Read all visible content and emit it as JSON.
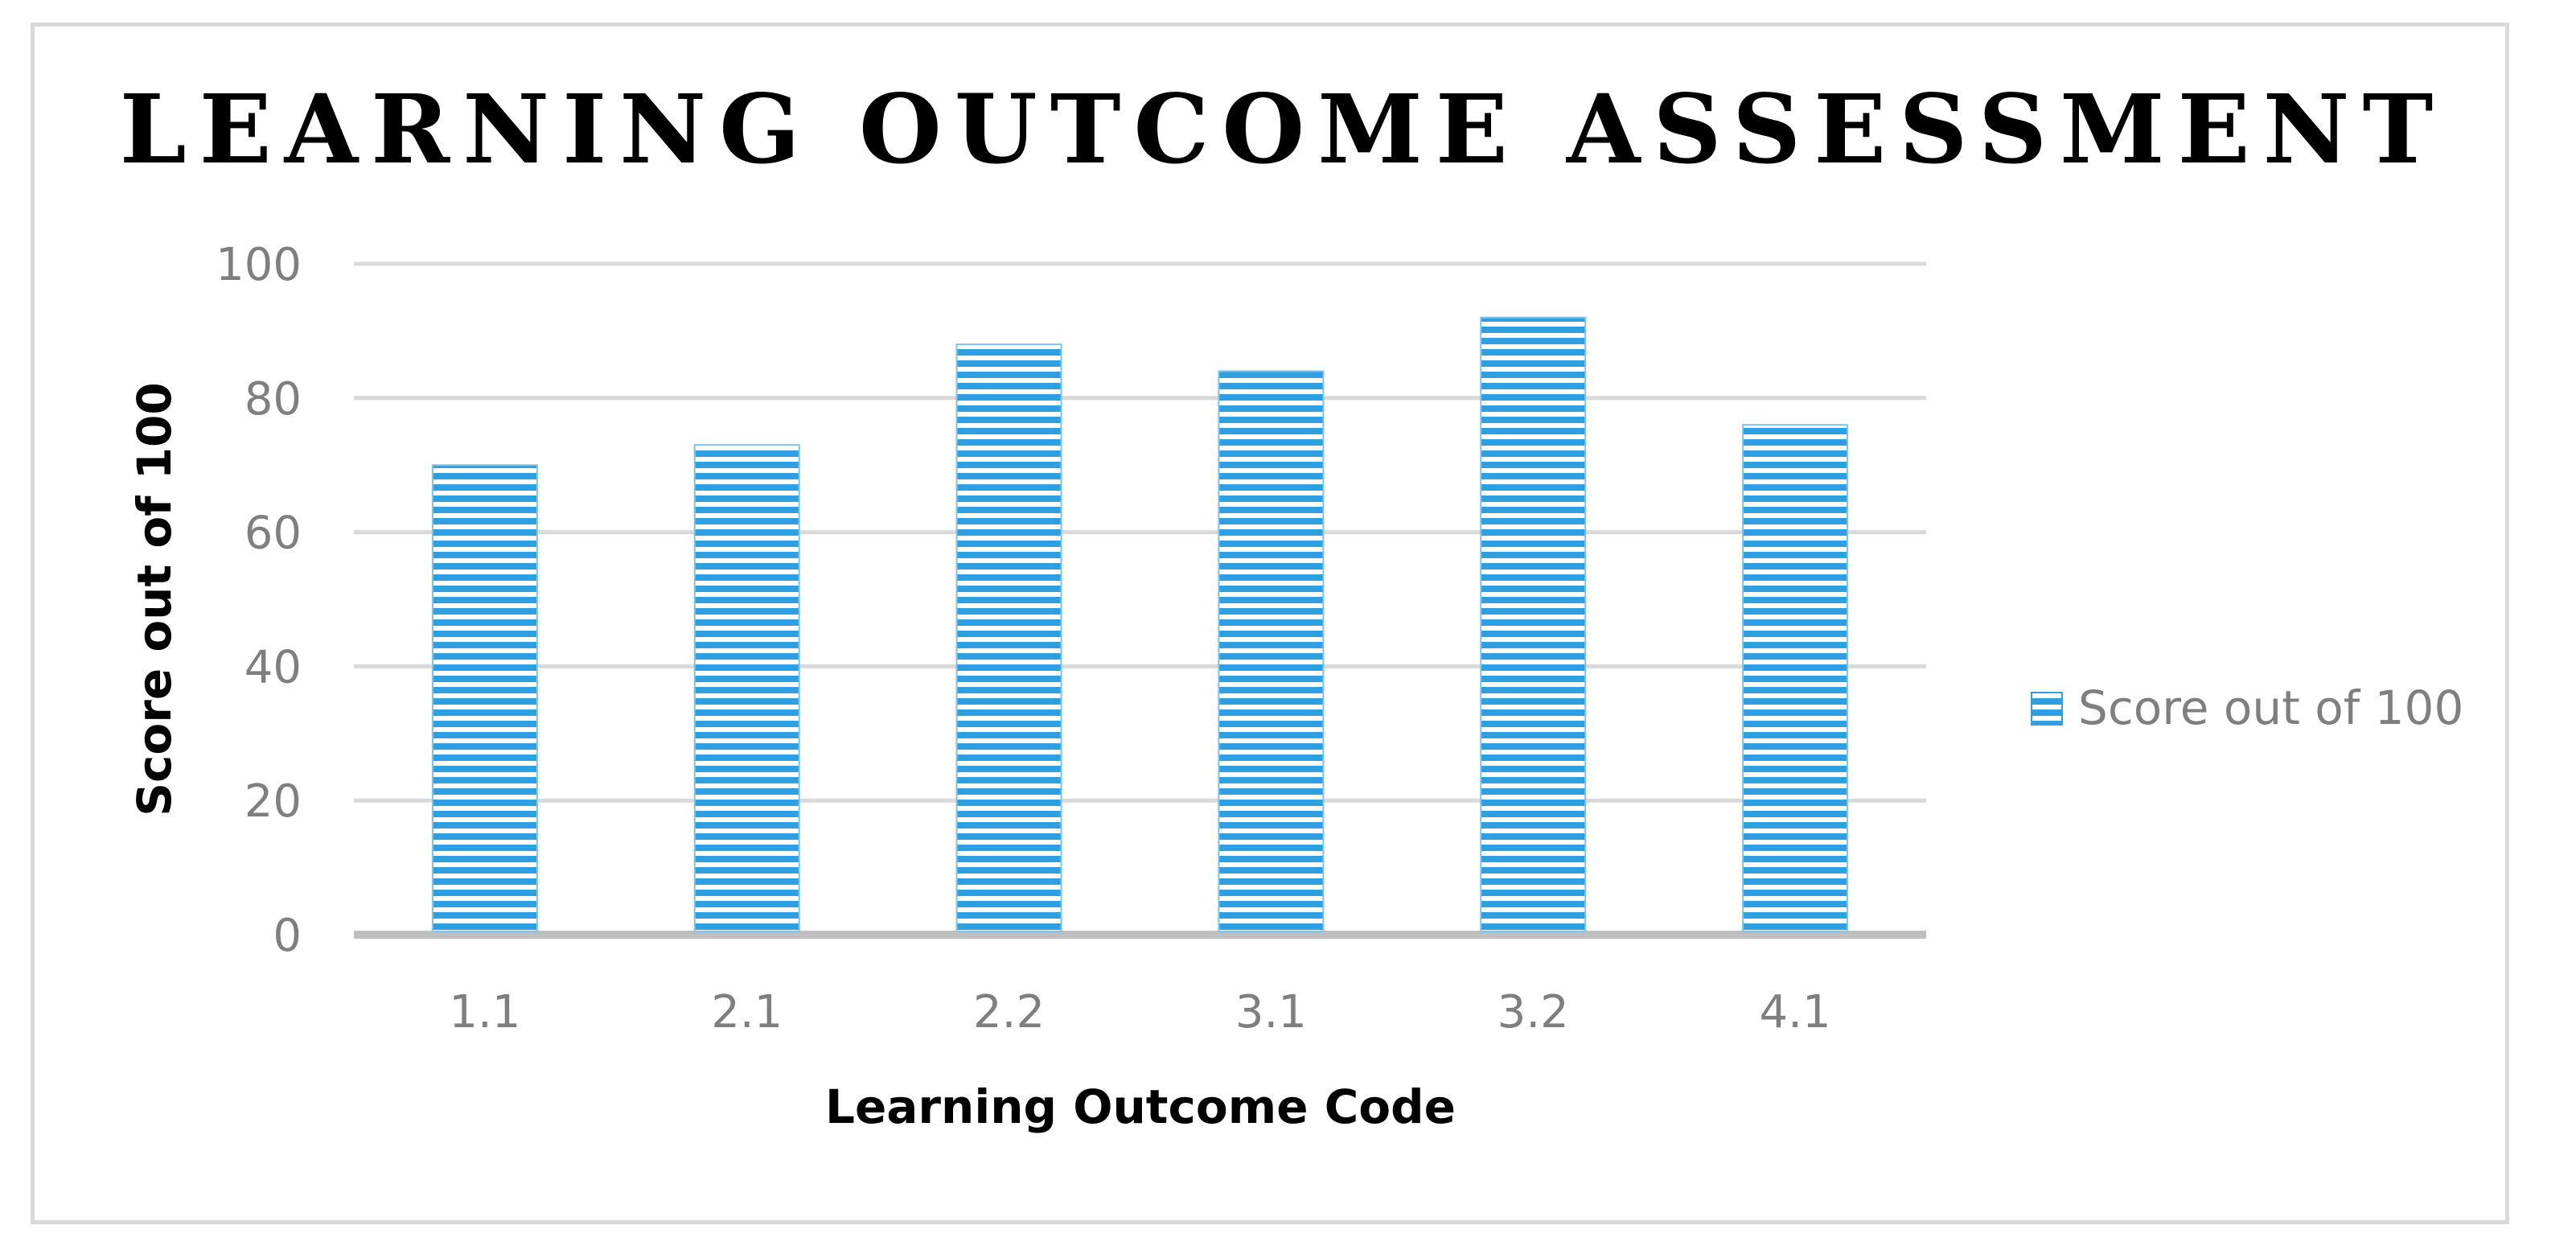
{
  "chart_data": {
    "type": "bar",
    "title": "LEARNING OUTCOME ASSESSMENT",
    "xlabel": "Learning Outcome Code",
    "ylabel": "Score out of 100",
    "categories": [
      "1.1",
      "2.1",
      "2.2",
      "3.1",
      "3.2",
      "4.1"
    ],
    "series": [
      {
        "name": "Score out of 100",
        "values": [
          70,
          73,
          88,
          84,
          92,
          76
        ],
        "color": "#2e9fe0"
      }
    ],
    "ylim": [
      0,
      100
    ],
    "yticks": [
      0,
      20,
      40,
      60,
      80,
      100
    ],
    "grid": true,
    "legend_position": "right",
    "bar_pattern": "horizontal-stripes"
  }
}
